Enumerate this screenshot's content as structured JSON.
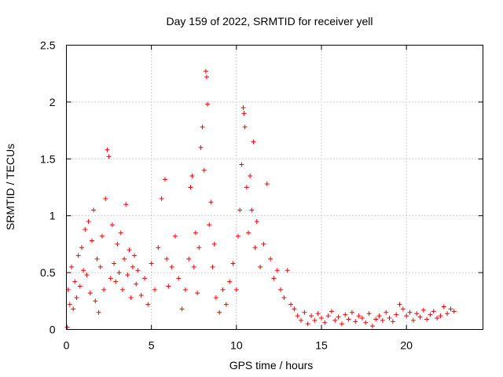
{
  "chart_data": {
    "type": "scatter",
    "title": "Day 159 of 2022, SRMTID for receiver yell",
    "xlabel": "GPS time / hours",
    "ylabel": "SRMTID / TECUs",
    "xlim": [
      0,
      24.5
    ],
    "ylim": [
      0,
      2.5
    ],
    "xticks": [
      0,
      5,
      10,
      15,
      20
    ],
    "yticks": [
      0,
      0.5,
      1,
      1.5,
      2,
      2.5
    ],
    "ytick_labels": [
      "0",
      "0.5",
      "1",
      "1.5",
      "2",
      "2.5"
    ],
    "grid": true,
    "marker": "+",
    "series": [
      {
        "name": "SRMTID",
        "color": "#ff0000",
        "points": [
          [
            0.05,
            0.02
          ],
          [
            0.1,
            0.35
          ],
          [
            0.2,
            0.22
          ],
          [
            0.3,
            0.55
          ],
          [
            0.4,
            0.18
          ],
          [
            0.5,
            0.42
          ],
          [
            0.6,
            0.28
          ],
          [
            0.7,
            0.65
          ],
          [
            0.8,
            0.38
          ],
          [
            0.9,
            0.72
          ],
          [
            1.0,
            0.52
          ],
          [
            1.1,
            0.88
          ],
          [
            1.2,
            0.48
          ],
          [
            1.3,
            0.95
          ],
          [
            1.4,
            0.32
          ],
          [
            1.5,
            0.78
          ],
          [
            1.6,
            1.05
          ],
          [
            1.7,
            0.25
          ],
          [
            1.8,
            0.62
          ],
          [
            1.9,
            0.15
          ],
          [
            2.0,
            0.55
          ],
          [
            2.1,
            0.82
          ],
          [
            2.2,
            0.35
          ],
          [
            2.3,
            1.15
          ],
          [
            2.4,
            1.58
          ],
          [
            2.5,
            1.52
          ],
          [
            2.6,
            0.45
          ],
          [
            2.7,
            0.92
          ],
          [
            2.8,
            0.58
          ],
          [
            2.9,
            0.42
          ],
          [
            3.0,
            0.75
          ],
          [
            3.1,
            0.5
          ],
          [
            3.2,
            0.85
          ],
          [
            3.3,
            0.35
          ],
          [
            3.4,
            0.62
          ],
          [
            3.5,
            1.1
          ],
          [
            3.6,
            0.48
          ],
          [
            3.7,
            0.7
          ],
          [
            3.8,
            0.28
          ],
          [
            3.9,
            0.55
          ],
          [
            4.0,
            0.65
          ],
          [
            4.1,
            0.4
          ],
          [
            4.2,
            0.52
          ],
          [
            4.4,
            0.3
          ],
          [
            4.6,
            0.45
          ],
          [
            4.8,
            0.22
          ],
          [
            5.0,
            0.58
          ],
          [
            5.2,
            0.35
          ],
          [
            5.4,
            0.72
          ],
          [
            5.6,
            1.15
          ],
          [
            5.8,
            1.32
          ],
          [
            5.9,
            0.62
          ],
          [
            6.0,
            0.38
          ],
          [
            6.2,
            0.55
          ],
          [
            6.4,
            0.82
          ],
          [
            6.6,
            0.45
          ],
          [
            6.8,
            0.18
          ],
          [
            7.0,
            0.35
          ],
          [
            7.2,
            0.62
          ],
          [
            7.3,
            1.25
          ],
          [
            7.4,
            1.35
          ],
          [
            7.5,
            0.55
          ],
          [
            7.6,
            0.85
          ],
          [
            7.7,
            0.32
          ],
          [
            7.8,
            0.72
          ],
          [
            7.9,
            1.6
          ],
          [
            8.0,
            1.78
          ],
          [
            8.1,
            1.4
          ],
          [
            8.2,
            2.27
          ],
          [
            8.25,
            2.22
          ],
          [
            8.3,
            1.98
          ],
          [
            8.4,
            0.92
          ],
          [
            8.5,
            1.12
          ],
          [
            8.6,
            0.55
          ],
          [
            8.7,
            0.75
          ],
          [
            8.8,
            0.28
          ],
          [
            9.0,
            0.15
          ],
          [
            9.2,
            0.35
          ],
          [
            9.4,
            0.22
          ],
          [
            9.6,
            0.42
          ],
          [
            9.8,
            0.58
          ],
          [
            10.0,
            0.35
          ],
          [
            10.1,
            0.82
          ],
          [
            10.2,
            1.05
          ],
          [
            10.3,
            1.45
          ],
          [
            10.4,
            1.95
          ],
          [
            10.45,
            1.9
          ],
          [
            10.5,
            1.78
          ],
          [
            10.6,
            1.25
          ],
          [
            10.7,
            0.85
          ],
          [
            10.8,
            1.35
          ],
          [
            10.9,
            1.05
          ],
          [
            11.0,
            1.65
          ],
          [
            11.1,
            0.72
          ],
          [
            11.2,
            0.95
          ],
          [
            11.4,
            0.55
          ],
          [
            11.6,
            0.75
          ],
          [
            11.8,
            1.28
          ],
          [
            12.0,
            0.62
          ],
          [
            12.2,
            0.45
          ],
          [
            12.4,
            0.52
          ],
          [
            12.6,
            0.35
          ],
          [
            12.8,
            0.28
          ],
          [
            13.0,
            0.52
          ],
          [
            13.2,
            0.22
          ],
          [
            13.4,
            0.18
          ],
          [
            13.6,
            0.12
          ],
          [
            13.8,
            0.08
          ],
          [
            14.0,
            0.15
          ],
          [
            14.2,
            0.05
          ],
          [
            14.4,
            0.12
          ],
          [
            14.6,
            0.08
          ],
          [
            14.8,
            0.14
          ],
          [
            15.0,
            0.1
          ],
          [
            15.2,
            0.06
          ],
          [
            15.4,
            0.12
          ],
          [
            15.6,
            0.16
          ],
          [
            15.8,
            0.08
          ],
          [
            16.0,
            0.11
          ],
          [
            16.2,
            0.05
          ],
          [
            16.4,
            0.13
          ],
          [
            16.6,
            0.09
          ],
          [
            16.8,
            0.15
          ],
          [
            17.0,
            0.07
          ],
          [
            17.2,
            0.12
          ],
          [
            17.4,
            0.1
          ],
          [
            17.6,
            0.06
          ],
          [
            17.8,
            0.14
          ],
          [
            18.0,
            0.03
          ],
          [
            18.2,
            0.09
          ],
          [
            18.4,
            0.12
          ],
          [
            18.6,
            0.08
          ],
          [
            18.8,
            0.15
          ],
          [
            19.0,
            0.1
          ],
          [
            19.2,
            0.07
          ],
          [
            19.4,
            0.13
          ],
          [
            19.6,
            0.22
          ],
          [
            19.8,
            0.18
          ],
          [
            20.0,
            0.12
          ],
          [
            20.2,
            0.15
          ],
          [
            20.4,
            0.08
          ],
          [
            20.6,
            0.14
          ],
          [
            20.8,
            0.11
          ],
          [
            21.0,
            0.17
          ],
          [
            21.2,
            0.09
          ],
          [
            21.4,
            0.13
          ],
          [
            21.6,
            0.16
          ],
          [
            21.8,
            0.1
          ],
          [
            22.0,
            0.12
          ],
          [
            22.2,
            0.2
          ],
          [
            22.4,
            0.14
          ],
          [
            22.6,
            0.18
          ],
          [
            22.8,
            0.16
          ]
        ]
      }
    ]
  }
}
